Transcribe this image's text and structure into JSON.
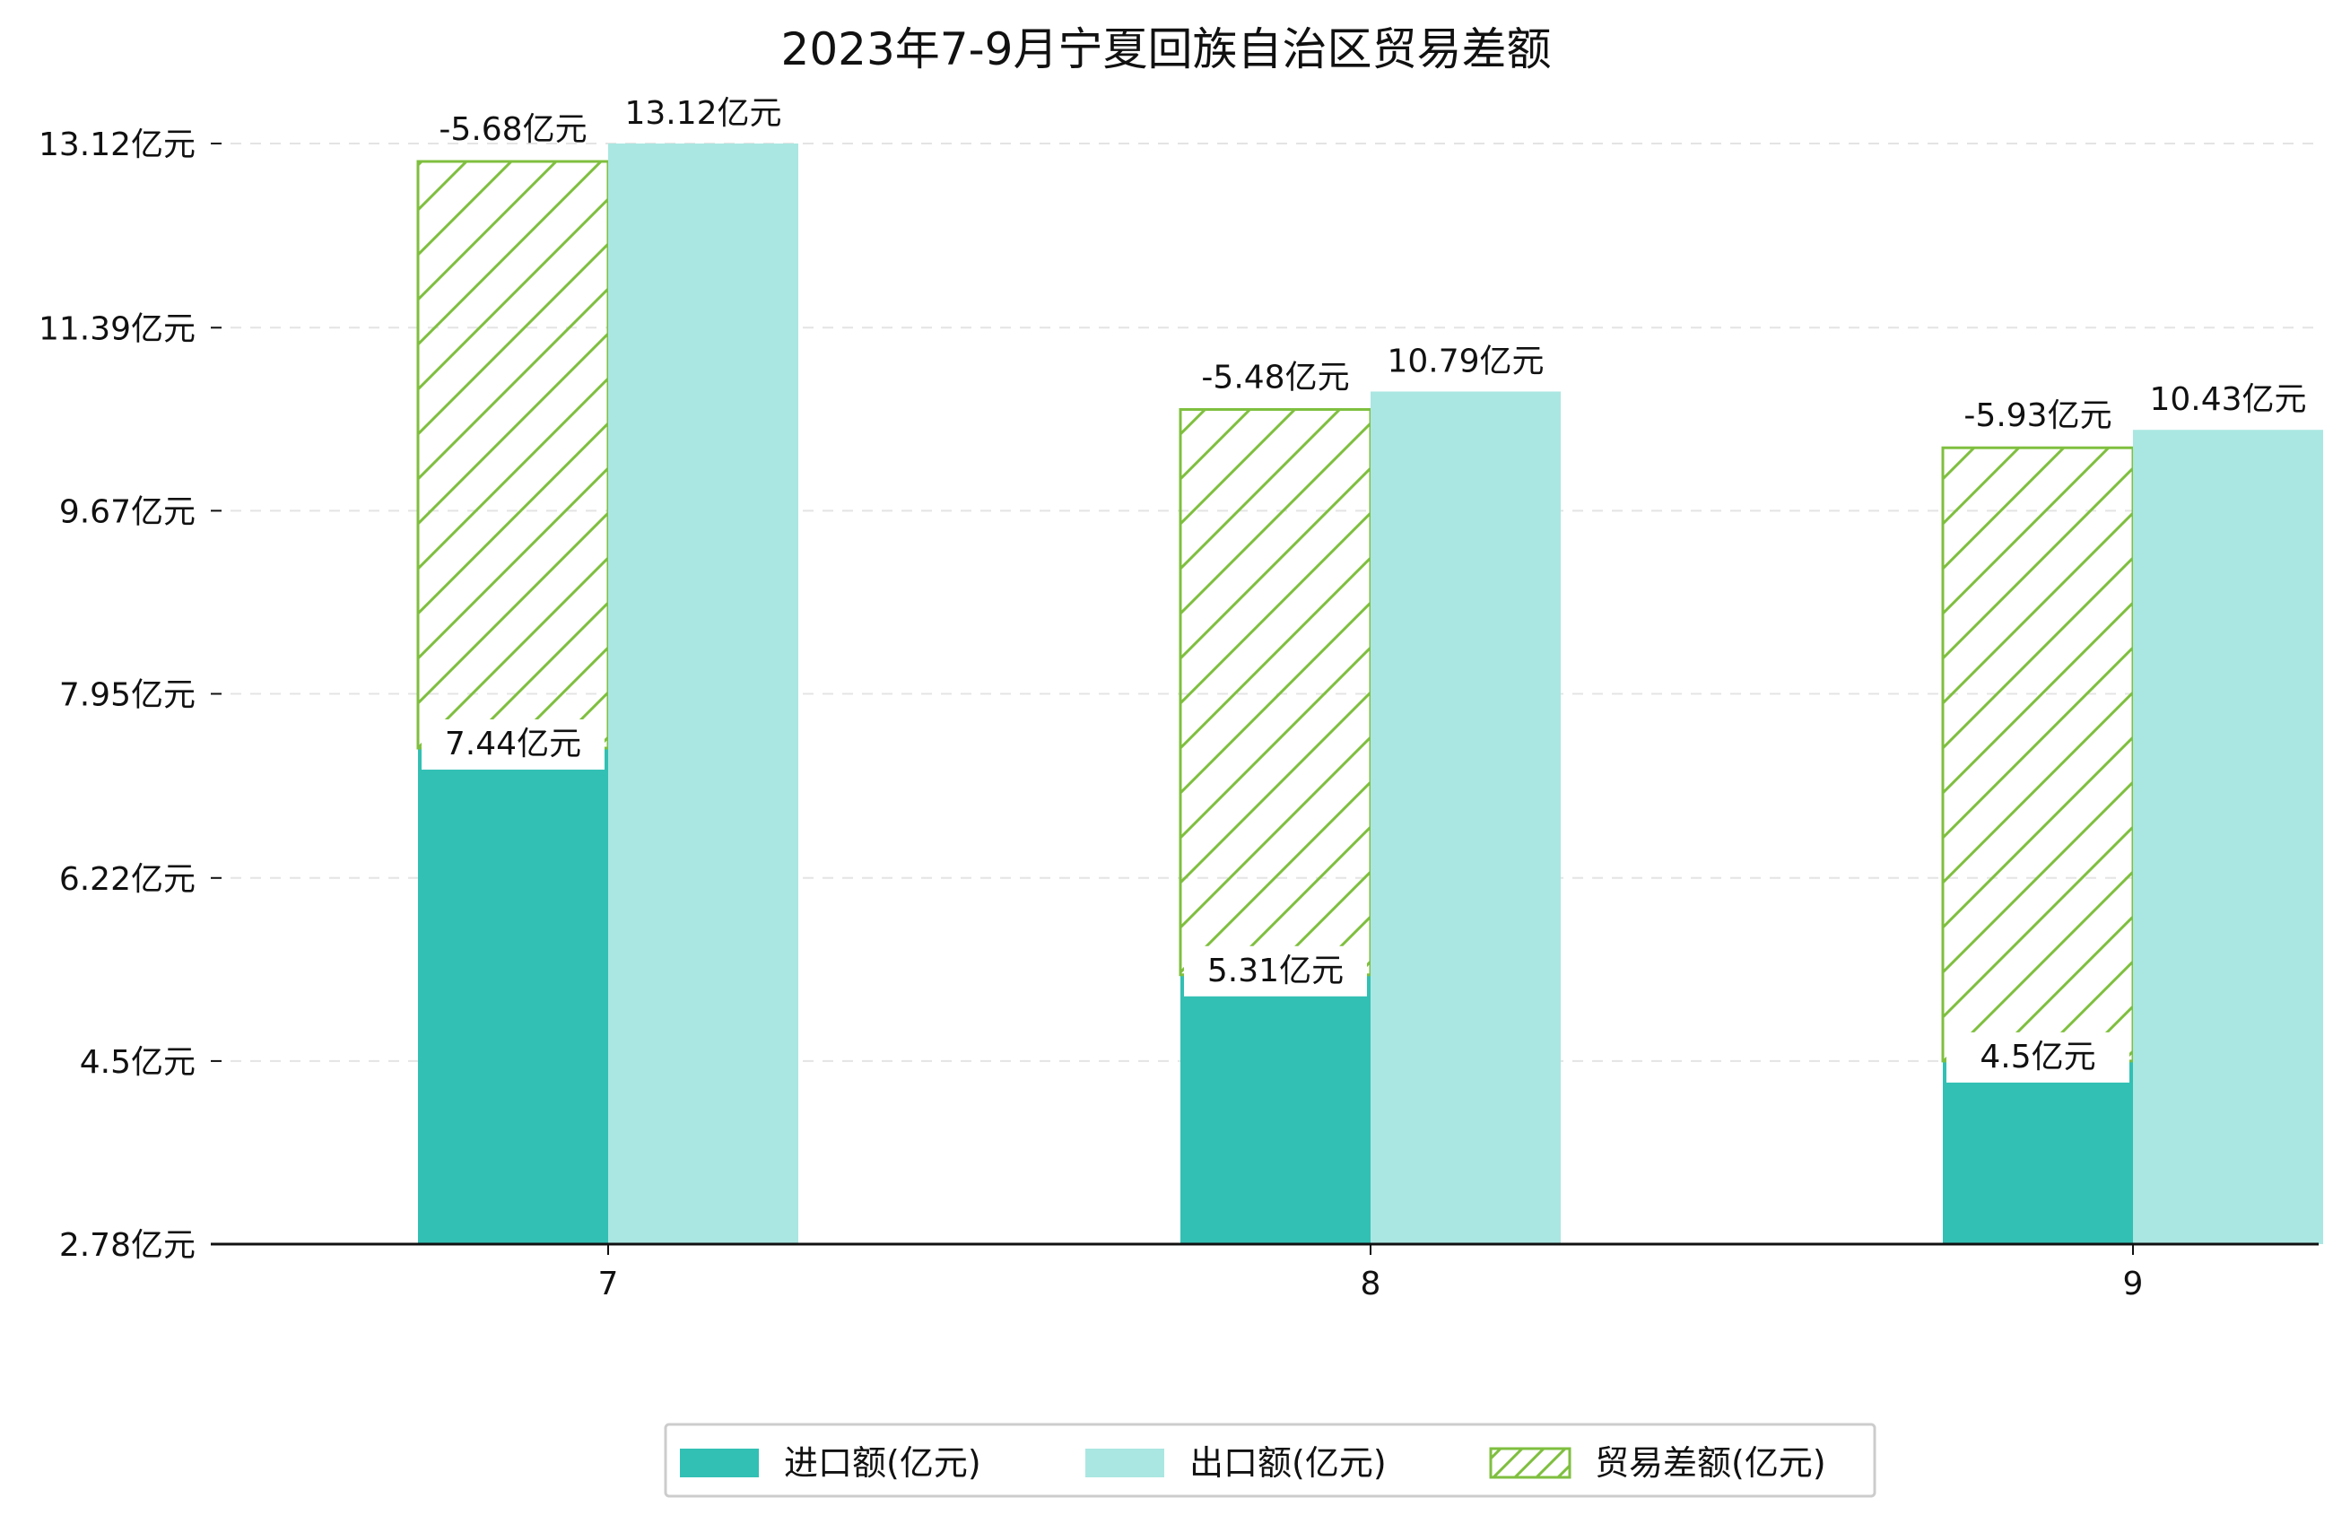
{
  "chart_data": {
    "type": "bar",
    "title": "2023年7-9月宁夏回族自治区贸易差额",
    "xlabel": "",
    "ylabel": "",
    "categories": [
      "7",
      "8",
      "9"
    ],
    "y_ticks": [
      "2.78亿元",
      "4.5亿元",
      "6.22亿元",
      "7.95亿元",
      "9.67亿元",
      "11.39亿元",
      "13.12亿元"
    ],
    "y_tick_values": [
      2.78,
      4.5,
      6.22,
      7.95,
      9.67,
      11.39,
      13.12
    ],
    "ylim": [
      2.78,
      13.12
    ],
    "series": [
      {
        "name": "进口额(亿元)",
        "values": [
          7.44,
          5.31,
          4.5
        ],
        "labels": [
          "7.44亿元",
          "5.31亿元",
          "4.5亿元"
        ],
        "color": "#32c0b4"
      },
      {
        "name": "出口额(亿元)",
        "values": [
          13.12,
          10.79,
          10.43
        ],
        "labels": [
          "13.12亿元",
          "10.79亿元",
          "10.43亿元"
        ],
        "color": "#aae7e2"
      },
      {
        "name": "贸易差额(亿元)",
        "values": [
          -5.68,
          -5.48,
          -5.93
        ],
        "labels": [
          "-5.68亿元",
          "-5.48亿元",
          "-5.93亿元"
        ],
        "color": "#7fbf3f"
      }
    ],
    "legend_position": "bottom-center",
    "grid": "horizontal dashed"
  }
}
